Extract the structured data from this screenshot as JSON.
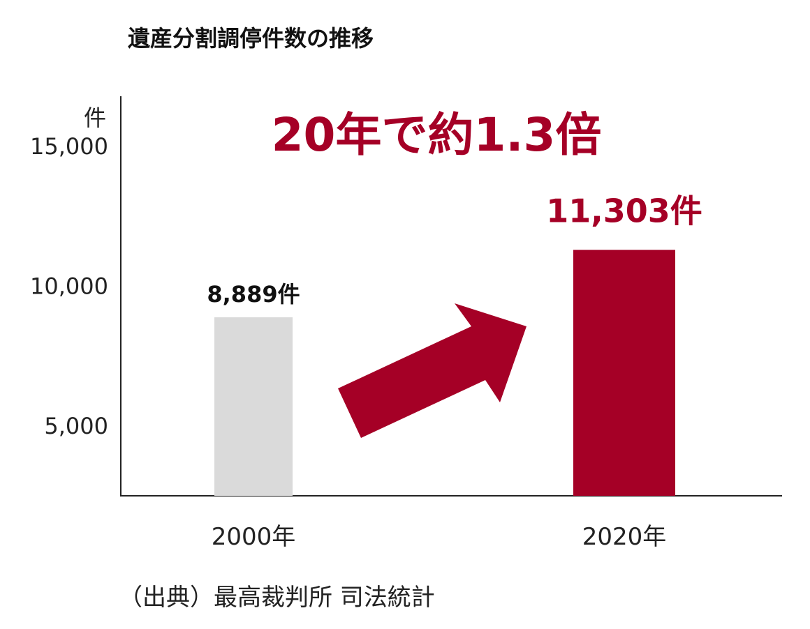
{
  "colors": {
    "accent": "#a50026",
    "bar_2000": "#dadada",
    "axis": "#222222"
  },
  "chart_data": {
    "type": "bar",
    "title": "遺産分割調停件数の推移",
    "ylabel": "件",
    "xlabel": "",
    "ylim": [
      2500,
      16800
    ],
    "yticks": [
      5000,
      10000,
      15000
    ],
    "ytick_labels": [
      "5,000",
      "10,000",
      "15,000"
    ],
    "categories": [
      "2000年",
      "2020年"
    ],
    "values": [
      8889,
      11303
    ],
    "value_labels": [
      "8,889件",
      "11,303件"
    ],
    "annotation": "20年で約1.3倍",
    "grid": false
  },
  "source": "（出典）最高裁判所 司法統計"
}
